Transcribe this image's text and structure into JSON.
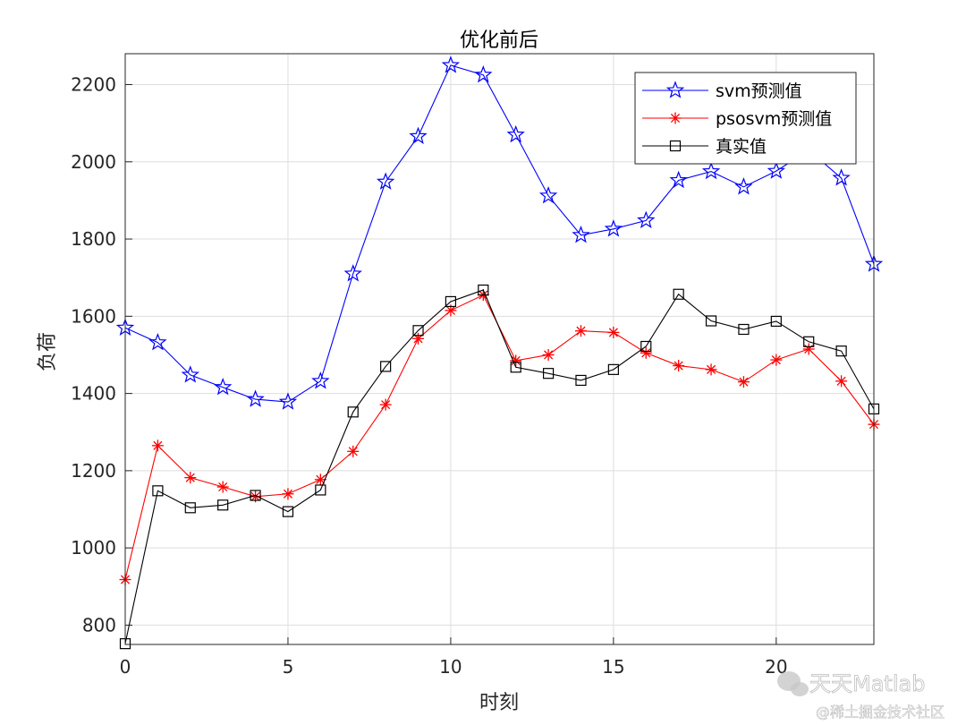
{
  "chart_data": {
    "type": "line",
    "title": "优化前后",
    "xlabel": "时刻",
    "ylabel": "负荷",
    "xlim": [
      0,
      23
    ],
    "ylim": [
      750,
      2280
    ],
    "xticks": [
      0,
      5,
      10,
      15,
      20
    ],
    "yticks": [
      800,
      1000,
      1200,
      1400,
      1600,
      1800,
      2000,
      2200
    ],
    "grid": true,
    "legend_position": "top-right",
    "x": [
      0,
      1,
      2,
      3,
      4,
      5,
      6,
      7,
      8,
      9,
      10,
      11,
      12,
      13,
      14,
      15,
      16,
      17,
      18,
      19,
      20,
      21,
      22,
      23
    ],
    "series": [
      {
        "name": "svm预测值",
        "color": "#0000ff",
        "marker": "star",
        "values": [
          1570,
          1532,
          1448,
          1416,
          1385,
          1378,
          1432,
          1710,
          1948,
          2066,
          2250,
          2225,
          2070,
          1912,
          1810,
          1826,
          1848,
          1952,
          1975,
          1935,
          1976,
          2030,
          1958,
          1735
        ]
      },
      {
        "name": "psosvm预测值",
        "color": "#ff0000",
        "marker": "asterisk",
        "values": [
          918,
          1265,
          1182,
          1158,
          1133,
          1140,
          1177,
          1250,
          1371,
          1542,
          1615,
          1655,
          1485,
          1500,
          1562,
          1558,
          1505,
          1472,
          1462,
          1430,
          1487,
          1515,
          1432,
          1320
        ]
      },
      {
        "name": "真实值",
        "color": "#000000",
        "marker": "square",
        "values": [
          752,
          1148,
          1104,
          1111,
          1136,
          1094,
          1150,
          1352,
          1470,
          1563,
          1638,
          1668,
          1468,
          1452,
          1434,
          1462,
          1522,
          1657,
          1588,
          1566,
          1587,
          1534,
          1510,
          1360
        ]
      }
    ]
  },
  "watermark": {
    "brand": "天天Matlab",
    "site": "@稀土掘金技术社区"
  }
}
